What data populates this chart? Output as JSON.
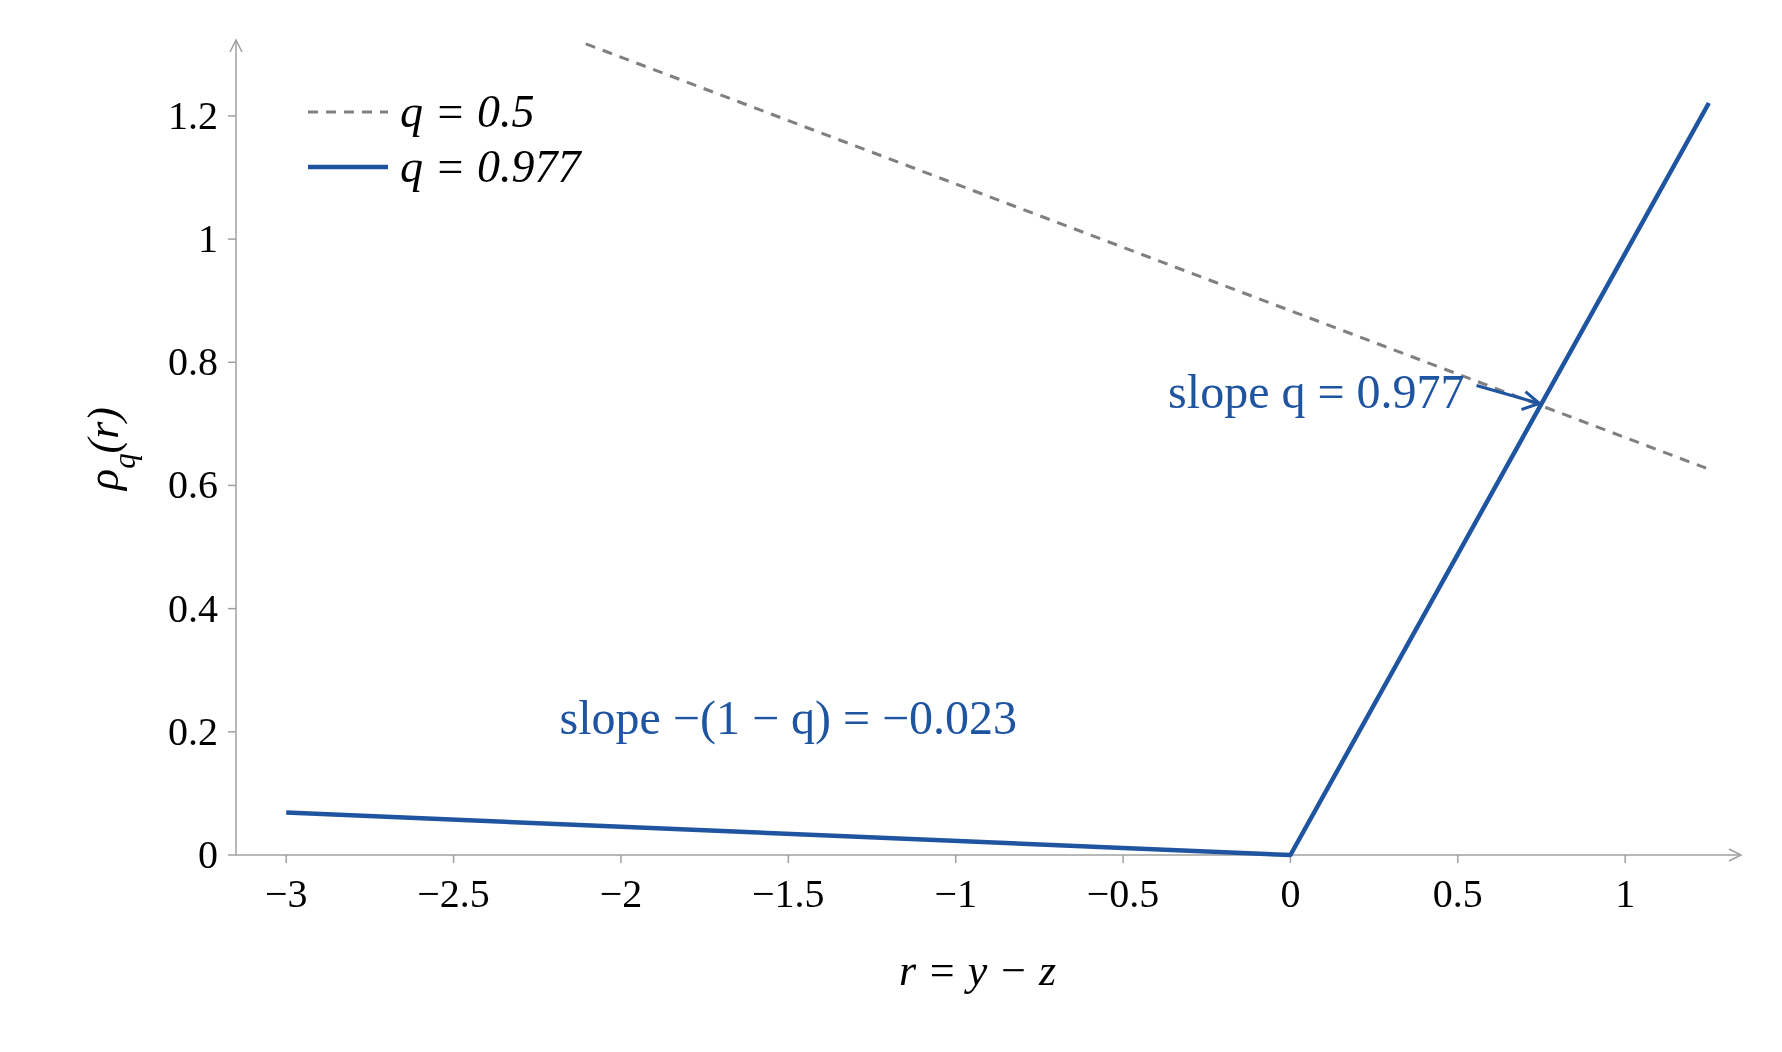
{
  "chart_data": {
    "type": "line",
    "xlabel": "r = y − z",
    "ylabel": "ρ$_{q}$(r)",
    "xlim": [
      -3.15,
      1.34
    ],
    "ylim": [
      0,
      1.32
    ],
    "xticks": [
      {
        "value": -3,
        "label": "−3"
      },
      {
        "value": -2.5,
        "label": "−2.5"
      },
      {
        "value": -2,
        "label": "−2"
      },
      {
        "value": -1.5,
        "label": "−1.5"
      },
      {
        "value": -1,
        "label": "−1"
      },
      {
        "value": -0.5,
        "label": "−0.5"
      },
      0,
      0.5,
      1
    ],
    "yticks": [
      0,
      0.2,
      0.4,
      0.6,
      0.8,
      1,
      1.2
    ],
    "series": [
      {
        "name": "q = 0.5",
        "color": "#808080",
        "line_style": "dashed",
        "x": [
          -2.105,
          1.252
        ],
        "values": [
          1.317,
          0.626
        ]
      },
      {
        "name": "q = 0.977",
        "color": "#1f55a0",
        "line_style": "solid",
        "x": [
          -3,
          0,
          1.25
        ],
        "values": [
          0.069,
          0,
          1.221
        ]
      }
    ],
    "annotations": [
      {
        "text": "slope q = 0.977",
        "x": 0.75,
        "y": 0.733
      },
      {
        "text": "slope −(1 − q) = −0.023",
        "x": -1.5,
        "y": 0.0345
      }
    ],
    "grid": false,
    "legend": "top left"
  }
}
